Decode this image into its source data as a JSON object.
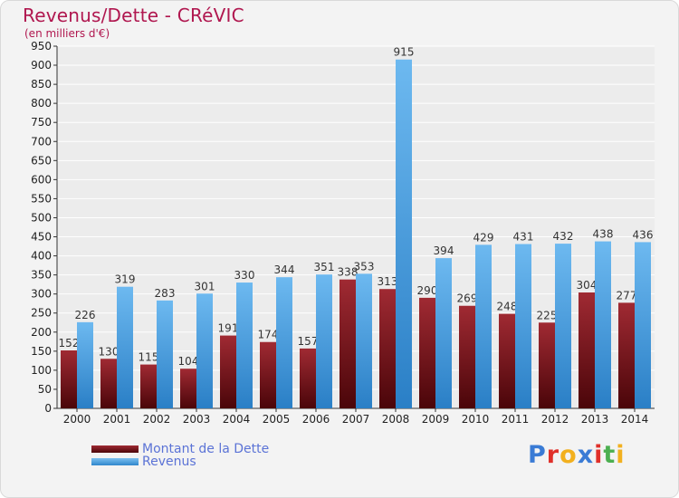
{
  "header": {
    "title": "Revenus/Dette - CRéVIC",
    "subtitle": "(en milliers d'€)"
  },
  "legend": [
    {
      "label": "Montant de la Dette",
      "color": "#6e0f16"
    },
    {
      "label": "Revenus",
      "color": "#4aa3e6"
    }
  ],
  "logo": {
    "letters": [
      "P",
      "r",
      "o",
      "x",
      "i",
      "t",
      "i"
    ],
    "colors": [
      "#3a7bd5",
      "#e0302a",
      "#f2b01e",
      "#3a7bd5",
      "#e0302a",
      "#4caf50",
      "#f2b01e"
    ]
  },
  "chart_data": {
    "type": "bar",
    "title": "Revenus/Dette - CRéVIC",
    "subtitle": "(en milliers d'€)",
    "categories": [
      "2000",
      "2001",
      "2002",
      "2003",
      "2004",
      "2005",
      "2006",
      "2007",
      "2008",
      "2009",
      "2010",
      "2011",
      "2012",
      "2013",
      "2014"
    ],
    "series": [
      {
        "name": "Montant de la Dette",
        "color": "#6e0f16",
        "values": [
          152,
          130,
          115,
          104,
          191,
          174,
          157,
          338,
          313,
          290,
          269,
          248,
          225,
          304,
          277
        ]
      },
      {
        "name": "Revenus",
        "color": "#4aa3e6",
        "values": [
          226,
          319,
          283,
          301,
          330,
          344,
          351,
          353,
          915,
          394,
          429,
          431,
          432,
          438,
          436
        ]
      }
    ],
    "ylim": [
      0,
      950
    ],
    "ytick_step": 50,
    "grid": true,
    "legend_position": "bottom-left"
  }
}
